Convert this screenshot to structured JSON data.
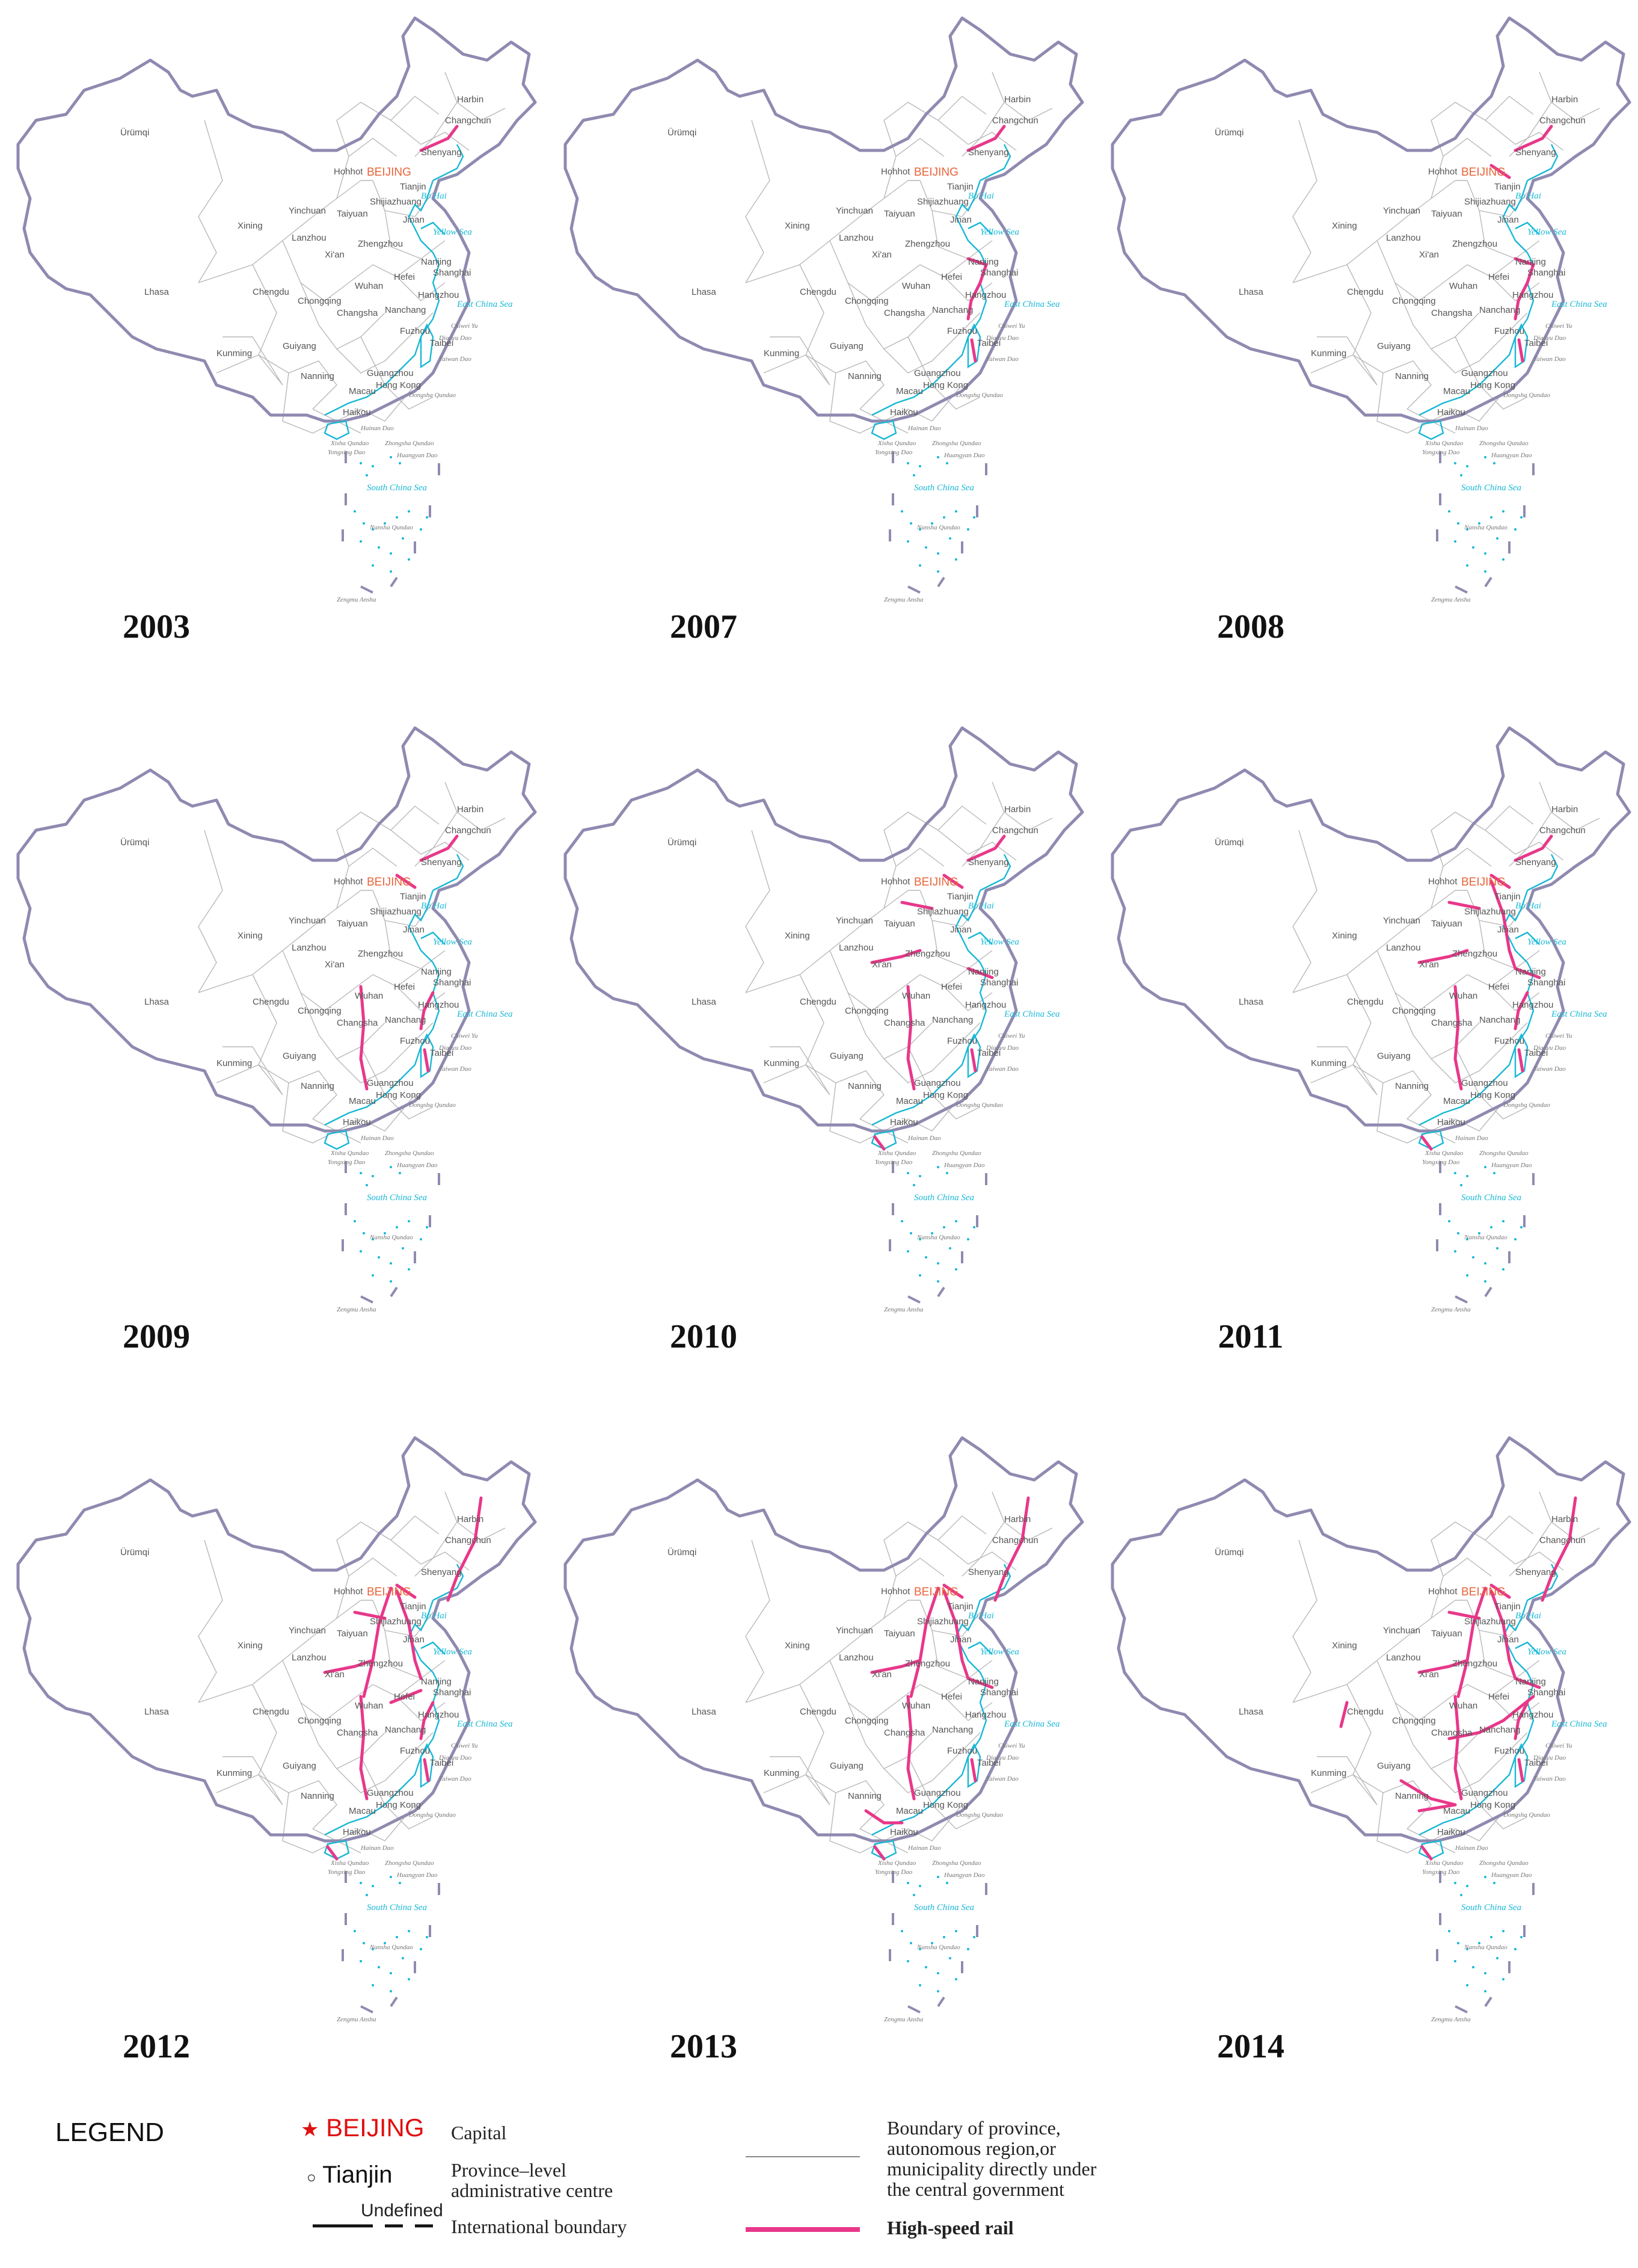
{
  "labels": {
    "capital": "BEIJING",
    "cities": {
      "urumqi": "Ürümqi",
      "harbin": "Harbin",
      "changchun": "Changchun",
      "shenyang": "Shenyang",
      "hohhot": "Hohhot",
      "tianjin": "Tianjin",
      "shijiazhuang": "Shijiazhuang",
      "yinchuan": "Yinchuan",
      "taiyuan": "Taiyuan",
      "jinan": "Jinan",
      "xining": "Xining",
      "lanzhou": "Lanzhou",
      "zhengzhou": "Zhengzhou",
      "xian": "Xi'an",
      "nanjing": "Nanjing",
      "shanghai": "Shanghai",
      "hefei": "Hefei",
      "lhasa": "Lhasa",
      "chengdu": "Chengdu",
      "wuhan": "Wuhan",
      "hangzhou": "Hangzhou",
      "chongqing": "Chongqing",
      "changsha": "Changsha",
      "nanchang": "Nanchang",
      "fuzhou": "Fuzhou",
      "taibei": "Taibei",
      "kunming": "Kunming",
      "guiyang": "Guiyang",
      "nanning": "Nanning",
      "guangzhou": "Guangzhou",
      "hongkong": "Hong Kong",
      "macau": "Macau",
      "haikou": "Haikou"
    },
    "seas": {
      "bohai": "Bo Hai",
      "yellow": "Yellow Sea",
      "eastchina": "East China Sea",
      "southchina": "South   China   Sea",
      "strait": "Taiwan Haixia"
    },
    "islands": {
      "chiwei": "Chiwei Yu",
      "diaoyu": "Diaoyu Dao",
      "taiwan": "Taiwan Dao",
      "dongsha": "Dongsha Qundao",
      "hainan": "Hainan Dao",
      "xisha": "Xisha Qundao",
      "yongxing": "Yongxing Dao",
      "zhongsha": "Zhongsha Qundao",
      "huangyan": "Huangyan Dao",
      "nansha": "Nansha Qundao",
      "zengmu": "Zengmu Ansha"
    }
  },
  "panels": [
    {
      "year": "2003",
      "lines": [
        "shenyang_coast"
      ]
    },
    {
      "year": "2007",
      "lines": [
        "shenyang_coast",
        "yangtze_delta",
        "wenzhou_coast",
        "taiwan"
      ]
    },
    {
      "year": "2008",
      "lines": [
        "shenyang_coast",
        "beijing_tianjin",
        "yangtze_delta",
        "wenzhou_coast",
        "taiwan"
      ]
    },
    {
      "year": "2009",
      "lines": [
        "shenyang_coast",
        "beijing_tianjin",
        "wuhan_guangzhou",
        "wenzhou_coast",
        "taiwan"
      ]
    },
    {
      "year": "2010",
      "lines": [
        "shenyang_coast",
        "beijing_tianjin",
        "wuhan_guangzhou",
        "zhengzhou_xian",
        "taiyuan_shijiazhuang",
        "shanghai_nanjing",
        "taiwan",
        "hainan"
      ]
    },
    {
      "year": "2011",
      "lines": [
        "shenyang_coast",
        "beijing_tianjin",
        "wuhan_guangzhou",
        "zhengzhou_xian",
        "taiyuan_shijiazhuang",
        "shanghai_nanjing",
        "beijing_shanghai",
        "wenzhou_coast",
        "taiwan",
        "hainan"
      ]
    },
    {
      "year": "2012",
      "lines": [
        "harbin_dalian",
        "beijing_tianjin",
        "beijing_wuhan",
        "wuhan_guangzhou",
        "zhengzhou_xian",
        "taiyuan_shijiazhuang",
        "beijing_shanghai",
        "hefei_nanjing",
        "wenzhou_coast",
        "taiwan",
        "hainan"
      ]
    },
    {
      "year": "2013",
      "lines": [
        "harbin_dalian",
        "beijing_tianjin",
        "beijing_wuhan",
        "wuhan_guangzhou",
        "zhengzhou_xian",
        "beijing_shanghai",
        "shanghai_nanjing",
        "nanning_coast",
        "hainan",
        "taiwan"
      ]
    },
    {
      "year": "2014",
      "lines": [
        "harbin_dalian",
        "beijing_tianjin",
        "beijing_wuhan",
        "wuhan_guangzhou",
        "zhengzhou_xian",
        "taiyuan_shijiazhuang",
        "beijing_shanghai",
        "shanghai_nanjing",
        "shanghai_changsha",
        "nanning_guangzhou",
        "guiyang_guangzhou",
        "chengdu_line",
        "wenzhou_coast",
        "taiwan",
        "hainan"
      ]
    }
  ],
  "legend": {
    "title": "LEGEND",
    "capital_name": "BEIJING",
    "capital_label": "Capital",
    "centre_name": "Tianjin",
    "centre_label_1": "Province–level",
    "centre_label_2": "administrative centre",
    "undefined_label": "Undefined",
    "intl_label": "International boundary",
    "prov_label_1": "Boundary of province,",
    "prov_label_2": "autonomous region,or",
    "prov_label_3": "municipality directly under",
    "prov_label_4": "the central government",
    "hsr_label": "High-speed rail"
  },
  "colors": {
    "rail": "#e8388a",
    "capital": "#e8643a",
    "sea": "#19b8d6",
    "border": "#8f8ab0",
    "province": "#b9b9b9",
    "legend_capital": "#e01010"
  }
}
